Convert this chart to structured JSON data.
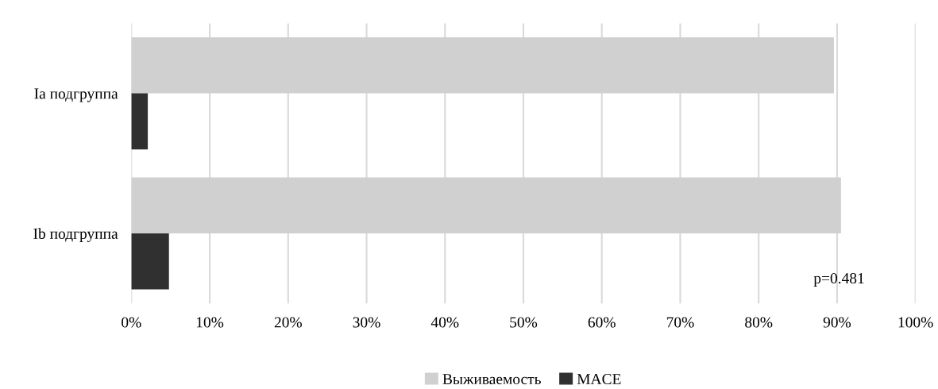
{
  "chart_data": {
    "type": "bar",
    "orientation": "horizontal",
    "categories": [
      "Ia подгруппа",
      "Ib подгруппа"
    ],
    "series": [
      {
        "name": "Выживаемость",
        "color": "#d0d0d0",
        "values": [
          89.6,
          90.5
        ]
      },
      {
        "name": "MACE",
        "color": "#303030",
        "values": [
          2.1,
          4.8
        ]
      }
    ],
    "xlim": [
      0,
      100
    ],
    "xticks": [
      {
        "value": 0,
        "label": "0%"
      },
      {
        "value": 10,
        "label": "10%"
      },
      {
        "value": 20,
        "label": "20%"
      },
      {
        "value": 30,
        "label": "30%"
      },
      {
        "value": 40,
        "label": "40%"
      },
      {
        "value": 50,
        "label": "50%"
      },
      {
        "value": 60,
        "label": "60%"
      },
      {
        "value": 70,
        "label": "70%"
      },
      {
        "value": 80,
        "label": "80%"
      },
      {
        "value": 90,
        "label": "90%"
      },
      {
        "value": 100,
        "label": "100%"
      }
    ],
    "grid": "x",
    "legend": "bottom",
    "annotations": [
      "p=0.481"
    ]
  }
}
